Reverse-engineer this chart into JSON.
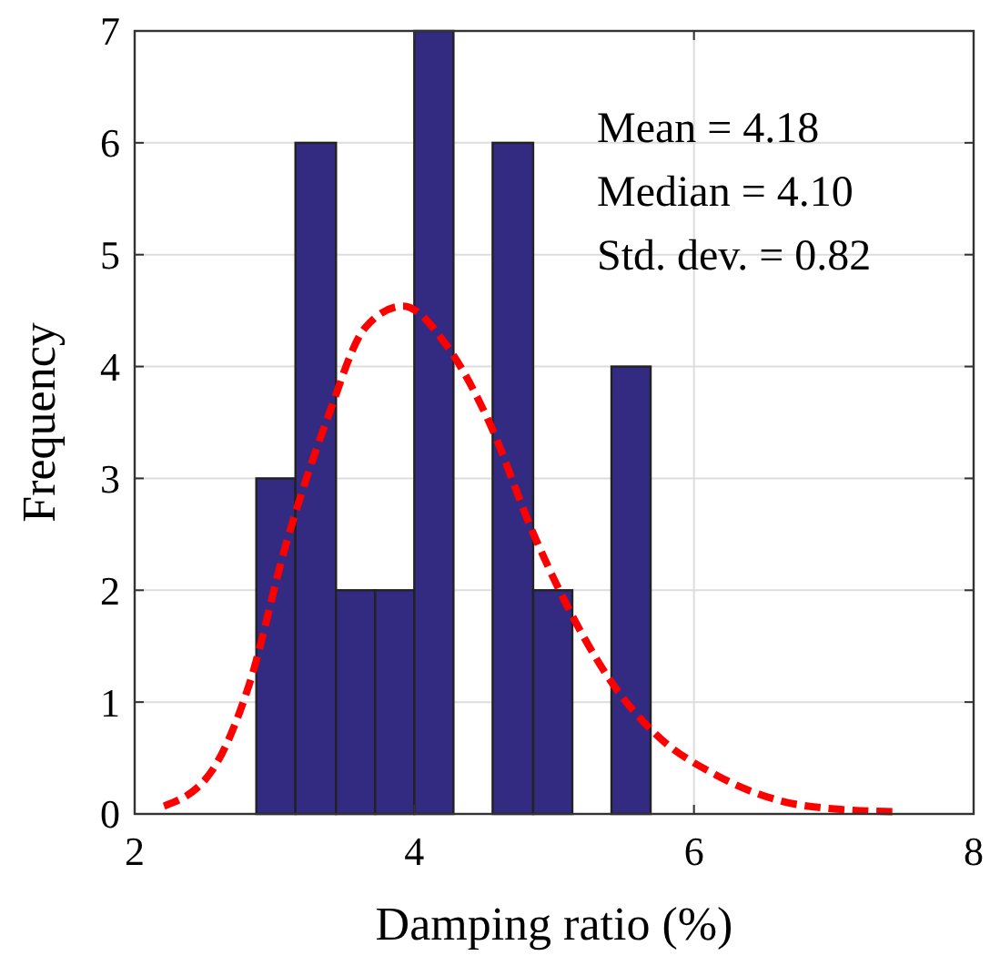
{
  "chart_data": {
    "type": "histogram",
    "xlabel": "Damping ratio (%)",
    "ylabel": "Frequency",
    "annotations": [
      "Mean = 4.18",
      "Median = 4.10",
      "Std. dev. = 0.82"
    ],
    "xlim": [
      2,
      8
    ],
    "ylim": [
      0,
      7
    ],
    "xticks": [
      2,
      4,
      6,
      8
    ],
    "yticks": [
      0,
      1,
      2,
      3,
      4,
      5,
      6,
      7
    ],
    "grid": true,
    "series": [
      {
        "color": "#332a82",
        "bins": [
          2.87,
          3.15,
          3.44,
          3.72,
          4.0,
          4.28,
          4.56,
          4.85,
          5.13,
          5.41,
          5.69
        ],
        "values": [
          3,
          6,
          2,
          2,
          7,
          0,
          6,
          2,
          0,
          4
        ]
      },
      {
        "type": "line",
        "color": "#ff0000",
        "line_style": "dashed",
        "x": [
          2.21,
          2.56,
          2.82,
          3.08,
          3.38,
          3.65,
          3.92,
          4.23,
          4.54,
          4.85,
          5.16,
          5.42,
          5.72,
          6.17,
          6.61,
          7.05,
          7.42
        ],
        "values": [
          0.07,
          0.4,
          1.16,
          2.4,
          3.54,
          4.35,
          4.54,
          4.19,
          3.49,
          2.51,
          1.7,
          1.16,
          0.72,
          0.34,
          0.12,
          0.04,
          0.02
        ]
      }
    ]
  }
}
